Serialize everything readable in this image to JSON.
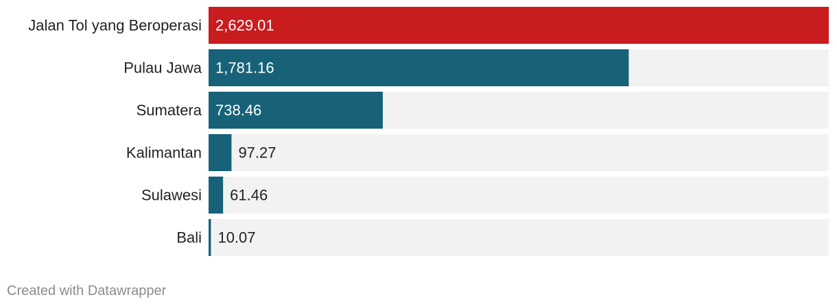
{
  "chart_data": {
    "type": "bar",
    "orientation": "horizontal",
    "categories": [
      "Jalan Tol yang Beroperasi",
      "Pulau Jawa",
      "Sumatera",
      "Kalimantan",
      "Sulawesi",
      "Bali"
    ],
    "values": [
      2629.01,
      1781.16,
      738.46,
      97.27,
      61.46,
      10.07
    ],
    "value_labels": [
      "2,629.01",
      "1,781.16",
      "738.46",
      "97.27",
      "61.46",
      "10.07"
    ],
    "xlim": [
      0,
      2629.01
    ],
    "colors": {
      "highlight": "#c91c1f",
      "bar": "#176279",
      "track": "#f2f2f2",
      "label_inside": "#ffffff",
      "label_outside": "#222222",
      "category_text": "#222222"
    },
    "highlight_index": 0
  },
  "footer": {
    "credit": "Created with Datawrapper"
  }
}
